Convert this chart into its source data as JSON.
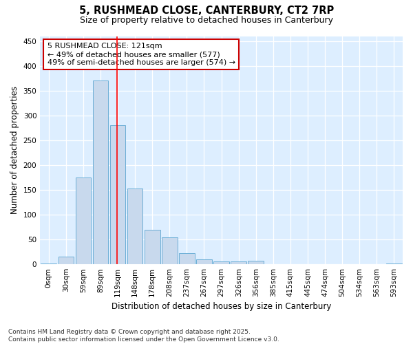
{
  "title_line1": "5, RUSHMEAD CLOSE, CANTERBURY, CT2 7RP",
  "title_line2": "Size of property relative to detached houses in Canterbury",
  "xlabel": "Distribution of detached houses by size in Canterbury",
  "ylabel": "Number of detached properties",
  "bar_labels": [
    "0sqm",
    "30sqm",
    "59sqm",
    "89sqm",
    "119sqm",
    "148sqm",
    "178sqm",
    "208sqm",
    "237sqm",
    "267sqm",
    "297sqm",
    "326sqm",
    "356sqm",
    "385sqm",
    "415sqm",
    "445sqm",
    "474sqm",
    "504sqm",
    "534sqm",
    "563sqm",
    "593sqm"
  ],
  "bar_values": [
    2,
    15,
    175,
    370,
    280,
    153,
    70,
    55,
    23,
    10,
    6,
    6,
    7,
    0,
    0,
    0,
    0,
    0,
    0,
    0,
    2
  ],
  "bar_color": "#c8d9ed",
  "bar_edge_color": "#6baed6",
  "red_line_index": 4,
  "annotation_line1": "5 RUSHMEAD CLOSE: 121sqm",
  "annotation_line2": "← 49% of detached houses are smaller (577)",
  "annotation_line3": "49% of semi-detached houses are larger (574) →",
  "annotation_box_color": "#ffffff",
  "annotation_box_edge_color": "#cc0000",
  "ylim": [
    0,
    460
  ],
  "yticks": [
    0,
    50,
    100,
    150,
    200,
    250,
    300,
    350,
    400,
    450
  ],
  "background_color": "#ffffff",
  "plot_bg_color": "#ddeeff",
  "footer_line1": "Contains HM Land Registry data © Crown copyright and database right 2025.",
  "footer_line2": "Contains public sector information licensed under the Open Government Licence v3.0.",
  "title_fontsize": 10.5,
  "subtitle_fontsize": 9,
  "axis_label_fontsize": 8.5,
  "tick_fontsize": 7.5,
  "annotation_fontsize": 8,
  "footer_fontsize": 6.5
}
